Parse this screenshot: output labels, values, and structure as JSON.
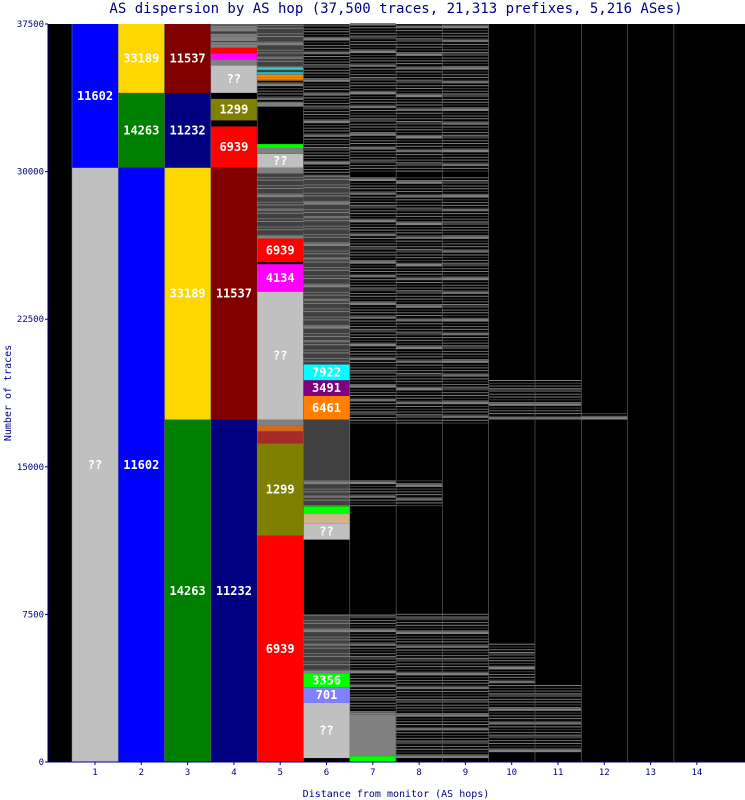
{
  "chart_data": {
    "type": "bar",
    "title": "AS dispersion by AS hop (37,500 traces, 21,313 prefixes, 5,216 ASes)",
    "xlabel": "Distance from monitor (AS hops)",
    "ylabel": "Number of traces",
    "ylim": [
      0,
      37500
    ],
    "y_ticks": [
      "0",
      "7500",
      "15000",
      "22500",
      "30000",
      "37500"
    ],
    "y_tick_values": [
      0,
      7500,
      15000,
      22500,
      30000,
      37500
    ],
    "categories": [
      "1",
      "2",
      "3",
      "4",
      "5",
      "6",
      "7",
      "8",
      "9",
      "10",
      "11",
      "12",
      "13",
      "14"
    ],
    "grid": false,
    "legend": "none",
    "colors": {
      "background": "#ffffff",
      "plot_background": "#000000",
      "axis": "#000080",
      "minor_as": "#808080",
      "minor_as_dark": "#404040",
      "unknown": "#c0c0c0"
    },
    "columns": [
      {
        "hop": "1",
        "segments": [
          {
            "label": "??",
            "start": 0,
            "end": 30200,
            "color": "#c0c0c0"
          },
          {
            "label": "11602",
            "start": 30200,
            "end": 37500,
            "color": "#0000ff"
          }
        ]
      },
      {
        "hop": "2",
        "segments": [
          {
            "label": "11602",
            "start": 0,
            "end": 30200,
            "color": "#0000ff"
          },
          {
            "label": "14263",
            "start": 30200,
            "end": 34000,
            "color": "#008000"
          },
          {
            "label": "33189",
            "start": 34000,
            "end": 37500,
            "color": "#ffd700"
          }
        ]
      },
      {
        "hop": "3",
        "segments": [
          {
            "label": "14263",
            "start": 0,
            "end": 17400,
            "color": "#008000"
          },
          {
            "label": "33189",
            "start": 17400,
            "end": 30200,
            "color": "#ffd700"
          },
          {
            "label": "11232",
            "start": 30200,
            "end": 34000,
            "color": "#000080"
          },
          {
            "label": "11537",
            "start": 34000,
            "end": 37500,
            "color": "#800000"
          }
        ]
      },
      {
        "hop": "4",
        "segments": [
          {
            "label": "11232",
            "start": 0,
            "end": 17400,
            "color": "#000080"
          },
          {
            "label": "11537",
            "start": 17400,
            "end": 30200,
            "color": "#800000"
          },
          {
            "label": "6939",
            "start": 30200,
            "end": 32300,
            "color": "#ff0000"
          },
          {
            "label": "",
            "start": 32300,
            "end": 32600,
            "color": "#000000"
          },
          {
            "label": "1299",
            "start": 32600,
            "end": 33700,
            "color": "#808000"
          },
          {
            "label": "",
            "start": 33700,
            "end": 34000,
            "color": "#000000"
          },
          {
            "label": "??",
            "start": 34000,
            "end": 35400,
            "color": "#c0c0c0"
          },
          {
            "label": "",
            "start": 35400,
            "end": 35700,
            "color": "#808080"
          },
          {
            "label": "",
            "start": 35700,
            "end": 36000,
            "color": "#ff00ff"
          },
          {
            "label": "",
            "start": 36000,
            "end": 36300,
            "color": "#ff0000"
          },
          {
            "label": "",
            "start": 36300,
            "end": 37500,
            "color": "#808080"
          }
        ]
      },
      {
        "hop": "5",
        "segments": [
          {
            "label": "6939",
            "start": 0,
            "end": 11500,
            "color": "#ff0000"
          },
          {
            "label": "1299",
            "start": 11500,
            "end": 16200,
            "color": "#808000"
          },
          {
            "label": "",
            "start": 16200,
            "end": 16800,
            "color": "#a52a2a"
          },
          {
            "label": "",
            "start": 16800,
            "end": 17100,
            "color": "#d2691e"
          },
          {
            "label": "",
            "start": 17100,
            "end": 17400,
            "color": "#808080"
          },
          {
            "label": "??",
            "start": 17400,
            "end": 23900,
            "color": "#c0c0c0"
          },
          {
            "label": "4134",
            "start": 23900,
            "end": 25300,
            "color": "#ff00ff"
          },
          {
            "label": "",
            "start": 25300,
            "end": 25400,
            "color": "#000000"
          },
          {
            "label": "6939",
            "start": 25400,
            "end": 26600,
            "color": "#ff0000"
          },
          {
            "label": "",
            "start": 26600,
            "end": 29900,
            "color": "#404040"
          },
          {
            "label": "",
            "start": 29900,
            "end": 30200,
            "color": "#808080"
          },
          {
            "label": "??",
            "start": 30200,
            "end": 30900,
            "color": "#c0c0c0"
          },
          {
            "label": "",
            "start": 30900,
            "end": 31200,
            "color": "#808080"
          },
          {
            "label": "",
            "start": 31200,
            "end": 31400,
            "color": "#00ff00"
          },
          {
            "label": "",
            "start": 31400,
            "end": 33300,
            "color": "#000000"
          },
          {
            "label": "",
            "start": 33300,
            "end": 33500,
            "color": "#808080"
          },
          {
            "label": "",
            "start": 33500,
            "end": 34600,
            "color": "#000000"
          },
          {
            "label": "",
            "start": 34600,
            "end": 35000,
            "color": "#ff8c00"
          },
          {
            "label": "",
            "start": 35000,
            "end": 35300,
            "color": "#00ffff"
          },
          {
            "label": "",
            "start": 35300,
            "end": 37500,
            "color": "#404040"
          }
        ]
      },
      {
        "hop": "6",
        "segments": [
          {
            "label": "",
            "start": 0,
            "end": 200,
            "color": "#000000"
          },
          {
            "label": "??",
            "start": 200,
            "end": 3000,
            "color": "#c0c0c0"
          },
          {
            "label": "701",
            "start": 3000,
            "end": 3800,
            "color": "#8080ff"
          },
          {
            "label": "3356",
            "start": 3800,
            "end": 4500,
            "color": "#00ff00"
          },
          {
            "label": "",
            "start": 4500,
            "end": 7500,
            "color": "#404040"
          },
          {
            "label": "",
            "start": 7500,
            "end": 11300,
            "color": "#000000"
          },
          {
            "label": "??",
            "start": 11300,
            "end": 12100,
            "color": "#c0c0c0"
          },
          {
            "label": "",
            "start": 12100,
            "end": 12600,
            "color": "#d2b48c"
          },
          {
            "label": "",
            "start": 12600,
            "end": 13000,
            "color": "#00ff00"
          },
          {
            "label": "",
            "start": 13000,
            "end": 17400,
            "color": "#404040"
          },
          {
            "label": "6461",
            "start": 17400,
            "end": 18600,
            "color": "#ff8000"
          },
          {
            "label": "3491",
            "start": 18600,
            "end": 19400,
            "color": "#800080"
          },
          {
            "label": "7922",
            "start": 19400,
            "end": 20200,
            "color": "#00ffff"
          },
          {
            "label": "",
            "start": 20200,
            "end": 29800,
            "color": "#404040"
          },
          {
            "label": "",
            "start": 29800,
            "end": 37500,
            "color": "#000000"
          }
        ]
      },
      {
        "hop": "7",
        "segments": [
          {
            "label": "",
            "start": 0,
            "end": 300,
            "color": "#00ff00"
          },
          {
            "label": "",
            "start": 300,
            "end": 2400,
            "color": "#808080"
          },
          {
            "label": "",
            "start": 2400,
            "end": 37500,
            "color": "#000000"
          }
        ]
      },
      {
        "hop": "8",
        "segments": [
          {
            "label": "",
            "start": 0,
            "end": 37500,
            "color": "#000000"
          }
        ]
      },
      {
        "hop": "9",
        "segments": [
          {
            "label": "",
            "start": 0,
            "end": 37500,
            "color": "#000000"
          }
        ]
      },
      {
        "hop": "10",
        "segments": [
          {
            "label": "",
            "start": 0,
            "end": 37500,
            "color": "#000000"
          }
        ]
      },
      {
        "hop": "11",
        "segments": [
          {
            "label": "",
            "start": 0,
            "end": 37500,
            "color": "#000000"
          }
        ]
      },
      {
        "hop": "12",
        "segments": [
          {
            "label": "",
            "start": 0,
            "end": 37500,
            "color": "#000000"
          }
        ]
      },
      {
        "hop": "13",
        "segments": [
          {
            "label": "",
            "start": 0,
            "end": 37500,
            "color": "#000000"
          }
        ]
      },
      {
        "hop": "14",
        "segments": [
          {
            "label": "",
            "start": 0,
            "end": 37500,
            "color": "#000000"
          }
        ]
      }
    ],
    "minor_as_bands": [
      {
        "hop": "4",
        "ranges": [
          [
            36300,
            37500
          ]
        ]
      },
      {
        "hop": "5",
        "ranges": [
          [
            26600,
            29900
          ],
          [
            33500,
            35300
          ],
          [
            35300,
            37500
          ]
        ]
      },
      {
        "hop": "6",
        "ranges": [
          [
            4500,
            7500
          ],
          [
            13000,
            14300
          ],
          [
            20200,
            29800
          ],
          [
            29800,
            37500
          ]
        ]
      },
      {
        "hop": "7",
        "ranges": [
          [
            2400,
            7500
          ],
          [
            13000,
            14300
          ],
          [
            17200,
            29800
          ],
          [
            30000,
            37500
          ]
        ]
      },
      {
        "hop": "8",
        "ranges": [
          [
            200,
            7500
          ],
          [
            13000,
            14300
          ],
          [
            17200,
            29800
          ],
          [
            30000,
            37500
          ]
        ]
      },
      {
        "hop": "9",
        "ranges": [
          [
            200,
            7500
          ],
          [
            17200,
            29800
          ],
          [
            30000,
            37500
          ]
        ]
      },
      {
        "hop": "10",
        "ranges": [
          [
            500,
            6000
          ],
          [
            17400,
            19500
          ]
        ]
      },
      {
        "hop": "11",
        "ranges": [
          [
            500,
            4000
          ],
          [
            17400,
            19500
          ]
        ]
      },
      {
        "hop": "12",
        "ranges": [
          [
            17400,
            17800
          ]
        ]
      }
    ]
  }
}
